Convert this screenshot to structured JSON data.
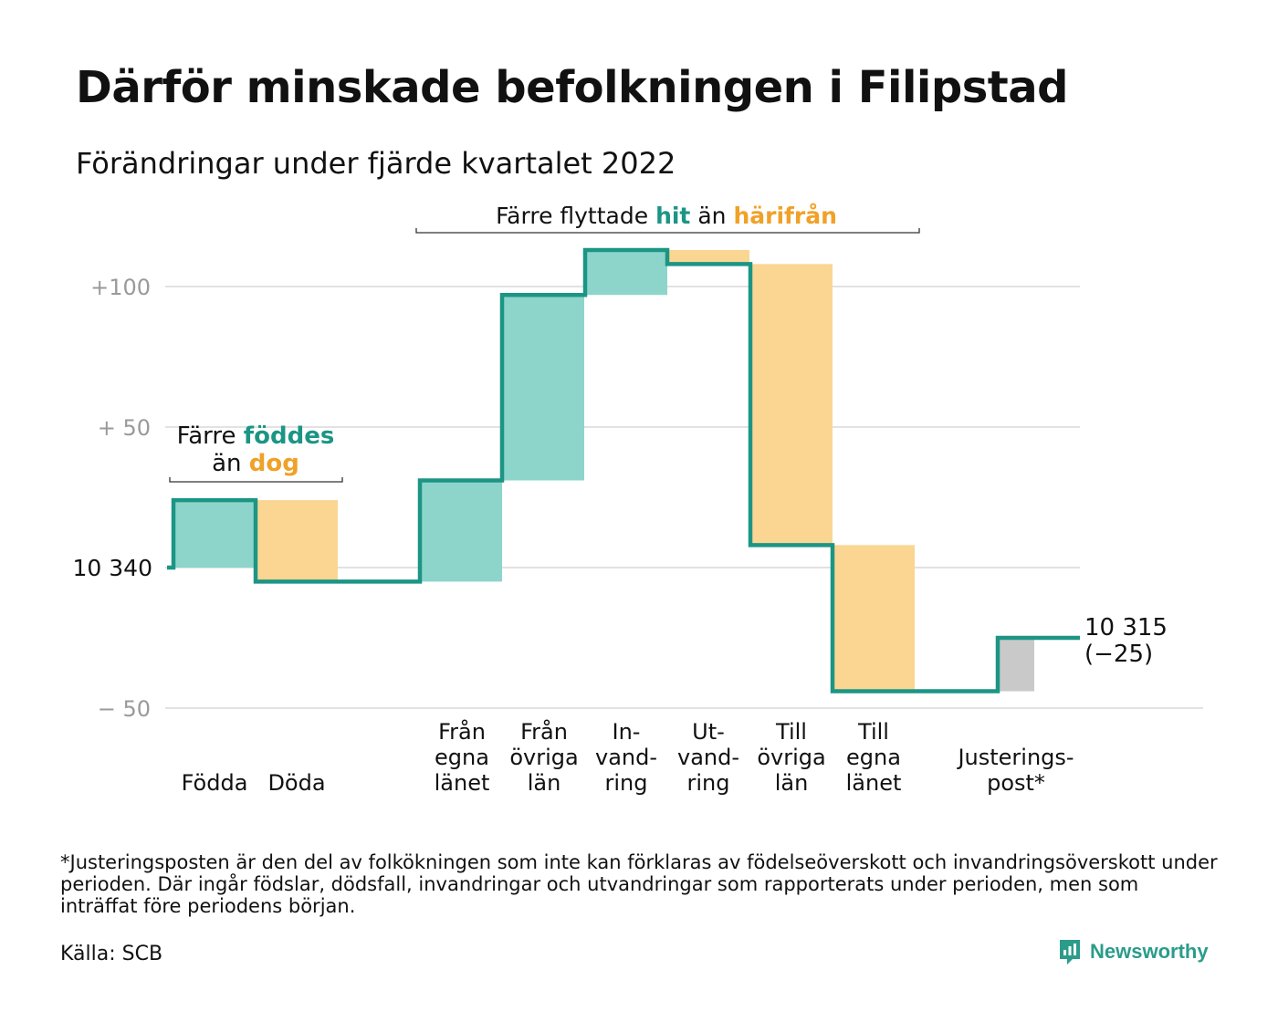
{
  "header": {
    "title": "Därför minskade befolkningen i Filipstad",
    "subtitle": "Förändringar under fjärde kvartalet 2022"
  },
  "chart_data": {
    "type": "waterfall",
    "baseline": 10340,
    "baseline_label": "10 340",
    "y_ticks": [
      {
        "value": 100,
        "label": "+100"
      },
      {
        "value": 50,
        "label": "+ 50"
      },
      {
        "value": -50,
        "label": "− 50"
      }
    ],
    "ylim": [
      -50,
      115
    ],
    "steps": [
      {
        "label": [
          "Födda"
        ],
        "delta": 24,
        "kind": "gain"
      },
      {
        "label": [
          "Döda"
        ],
        "delta": -29,
        "kind": "loss"
      },
      {
        "label": [
          "Från",
          "egna",
          "länet"
        ],
        "delta": 36,
        "kind": "gain"
      },
      {
        "label": [
          "Från",
          "övriga",
          "län"
        ],
        "delta": 66,
        "kind": "gain"
      },
      {
        "label": [
          "In-",
          "vand-",
          "ring"
        ],
        "delta": 16,
        "kind": "gain"
      },
      {
        "label": [
          "Ut-",
          "vand-",
          "ring"
        ],
        "delta": -5,
        "kind": "loss"
      },
      {
        "label": [
          "Till",
          "övriga",
          "län"
        ],
        "delta": -100,
        "kind": "loss"
      },
      {
        "label": [
          "Till",
          "egna",
          "länet"
        ],
        "delta": -52,
        "kind": "loss"
      },
      {
        "label": [
          "Justerings-",
          "post*"
        ],
        "delta": 19,
        "kind": "adjust"
      }
    ],
    "end_label": [
      "10 315",
      "(−25)"
    ],
    "annotations": [
      {
        "text": [
          {
            "t": "Färre ",
            "c": "plain"
          },
          {
            "t": "föddes",
            "c": "gain"
          }
        ],
        "text2": [
          {
            "t": "än ",
            "c": "plain"
          },
          {
            "t": "dog",
            "c": "loss"
          }
        ]
      },
      {
        "text": [
          {
            "t": "Färre flyttade ",
            "c": "plain"
          },
          {
            "t": "hit",
            "c": "gain"
          },
          {
            "t": " än ",
            "c": "plain"
          },
          {
            "t": "härifrån",
            "c": "loss"
          }
        ]
      }
    ]
  },
  "colors": {
    "line": "#1c9585",
    "gain_fill": "#8dd5cb",
    "loss_fill": "#fad692",
    "adjust_fill": "#c9c9c9",
    "gain_text": "#1c9585",
    "loss_text": "#f0a128",
    "grid": "#e2e2e2",
    "tick_text": "#9a9a9a"
  },
  "footnote": "*Justeringsposten är den del av folkökningen som inte kan förklaras av födelseöverskott och invandringsöverskott under perioden. Där ingår födslar, dödsfall, invandringar och utvandringar som rapporterats under perioden, men som inträffat före periodens början.",
  "source": "Källa: SCB",
  "brand": {
    "name": "Newsworthy",
    "icon": "newsworthy-logo-icon"
  }
}
